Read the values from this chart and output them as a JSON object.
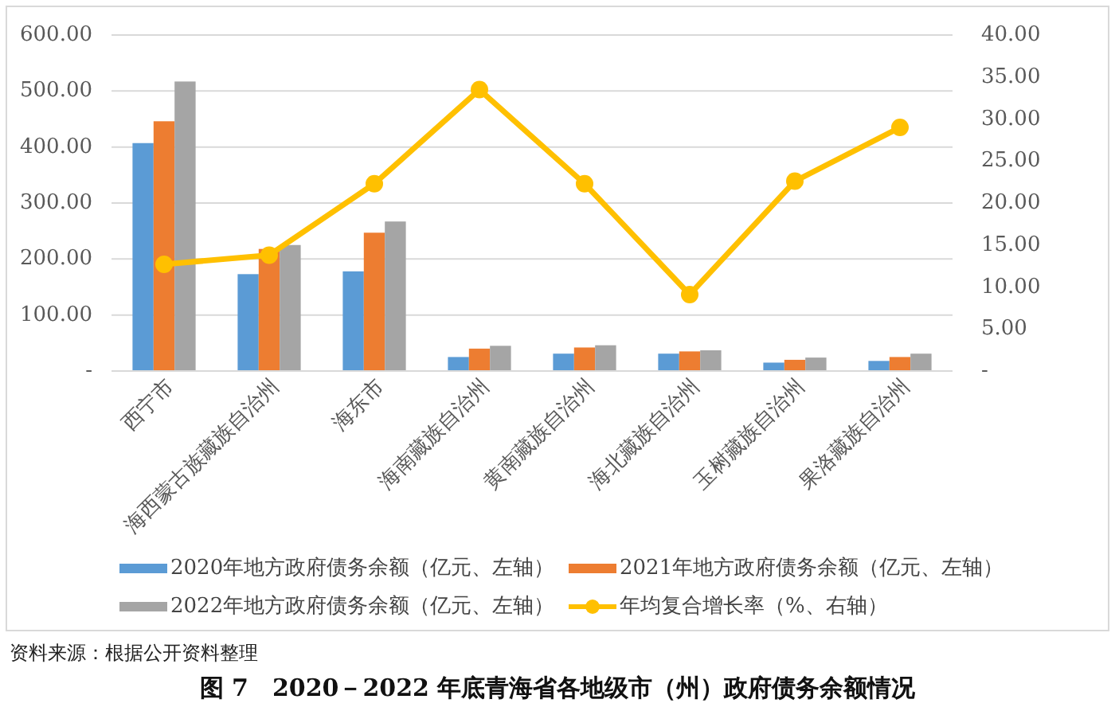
{
  "chart_data": {
    "type": "bar",
    "title": "图 7　2020－2022 年底青海省各地级市（州）政府债务余额情况",
    "annotations": [
      "资料来源：根据公开资料整理"
    ],
    "categories": [
      "西宁市",
      "海西蒙古族藏族自治州",
      "海东市",
      "海南藏族自治州",
      "黄南藏族自治州",
      "海北藏族自治州",
      "玉树藏族自治州",
      "果洛藏族自治州"
    ],
    "series": [
      {
        "name": "2020年地方政府债务余额（亿元、左轴）",
        "color": "#5b9bd5",
        "values": [
          407,
          173,
          178,
          25,
          31,
          31,
          15,
          18
        ]
      },
      {
        "name": "2021年地方政府债务余额（亿元、左轴）",
        "color": "#ed7d31",
        "values": [
          446,
          218,
          247,
          40,
          42,
          35,
          20,
          25
        ]
      },
      {
        "name": "2022年地方政府债务余额（亿元、左轴）",
        "color": "#a5a5a5",
        "values": [
          517,
          225,
          267,
          45,
          46,
          37,
          24,
          31
        ]
      },
      {
        "name": "年均复合增长率（%、右轴）",
        "type": "line",
        "axis": "y2",
        "color": "#ffc000",
        "marker": "circle",
        "values": [
          12.7,
          13.8,
          22.3,
          33.5,
          22.3,
          9.1,
          22.6,
          29.0
        ]
      }
    ],
    "ylim": [
      0,
      600
    ],
    "yticks": [
      {
        "value": 0,
        "label": "-"
      },
      {
        "value": 100,
        "label": "100.00"
      },
      {
        "value": 200,
        "label": "200.00"
      },
      {
        "value": 300,
        "label": "300.00"
      },
      {
        "value": 400,
        "label": "400.00"
      },
      {
        "value": 500,
        "label": "500.00"
      },
      {
        "value": 600,
        "label": "600.00"
      }
    ],
    "y2lim": [
      0,
      40
    ],
    "y2ticks": [
      {
        "value": 0,
        "label": "-"
      },
      {
        "value": 5,
        "label": "5.00"
      },
      {
        "value": 10,
        "label": "10.00"
      },
      {
        "value": 15,
        "label": "15.00"
      },
      {
        "value": 20,
        "label": "20.00"
      },
      {
        "value": 25,
        "label": "25.00"
      },
      {
        "value": 30,
        "label": "30.00"
      },
      {
        "value": 35,
        "label": "35.00"
      },
      {
        "value": 40,
        "label": "40.00"
      }
    ],
    "grid": "y",
    "legend": "bottom"
  }
}
